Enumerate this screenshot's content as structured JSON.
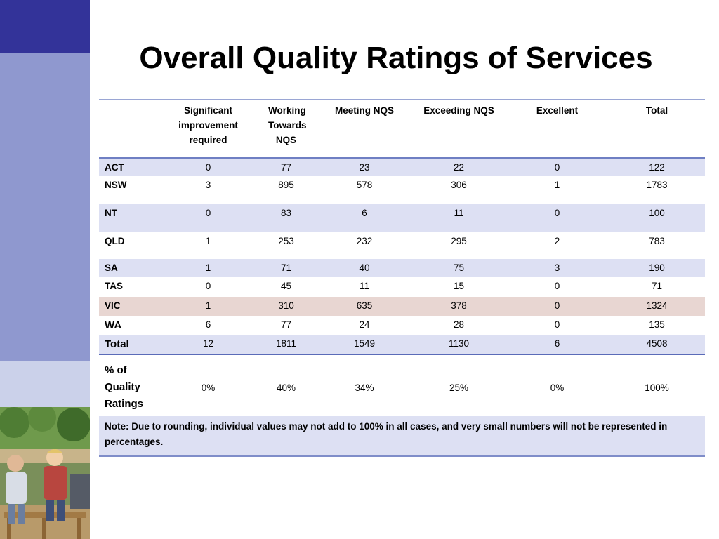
{
  "title": "Overall Quality Ratings of Services",
  "table": {
    "headers": [
      "",
      "Significant improvement required",
      "Working Towards NQS",
      "Meeting NQS",
      "Exceeding NQS",
      "Excellent",
      "Total"
    ],
    "rows": [
      {
        "label": "ACT",
        "values": [
          "0",
          "77",
          "23",
          "22",
          "0",
          "122"
        ]
      },
      {
        "label": "NSW",
        "values": [
          "3",
          "895",
          "578",
          "306",
          "1",
          "1783"
        ]
      },
      {
        "label": "NT",
        "values": [
          "0",
          "83",
          "6",
          "11",
          "0",
          "100"
        ]
      },
      {
        "label": "QLD",
        "values": [
          "1",
          "253",
          "232",
          "295",
          "2",
          "783"
        ]
      },
      {
        "label": "SA",
        "values": [
          "1",
          "71",
          "40",
          "75",
          "3",
          "190"
        ]
      },
      {
        "label": "TAS",
        "values": [
          "0",
          "45",
          "11",
          "15",
          "0",
          "71"
        ]
      },
      {
        "label": "VIC",
        "values": [
          "1",
          "310",
          "635",
          "378",
          "0",
          "1324"
        ]
      },
      {
        "label": "WA",
        "values": [
          "6",
          "77",
          "24",
          "28",
          "0",
          "135"
        ]
      },
      {
        "label": "Total",
        "values": [
          "12",
          "1811",
          "1549",
          "1130",
          "6",
          "4508"
        ]
      }
    ],
    "percent_row": {
      "label": "% of Quality Ratings",
      "values": [
        "0%",
        "40%",
        "34%",
        "25%",
        "0%",
        "100%"
      ]
    },
    "note": "Note: Due to rounding, individual values may not add to 100% in all cases, and very small numbers will not be represented in percentages."
  },
  "colors": {
    "band_dark": "#333399",
    "band_mid": "#8f98cf",
    "band_light": "#cbd1ea",
    "row_shade": "#dde0f3",
    "row_highlight": "#e8d6d2"
  }
}
